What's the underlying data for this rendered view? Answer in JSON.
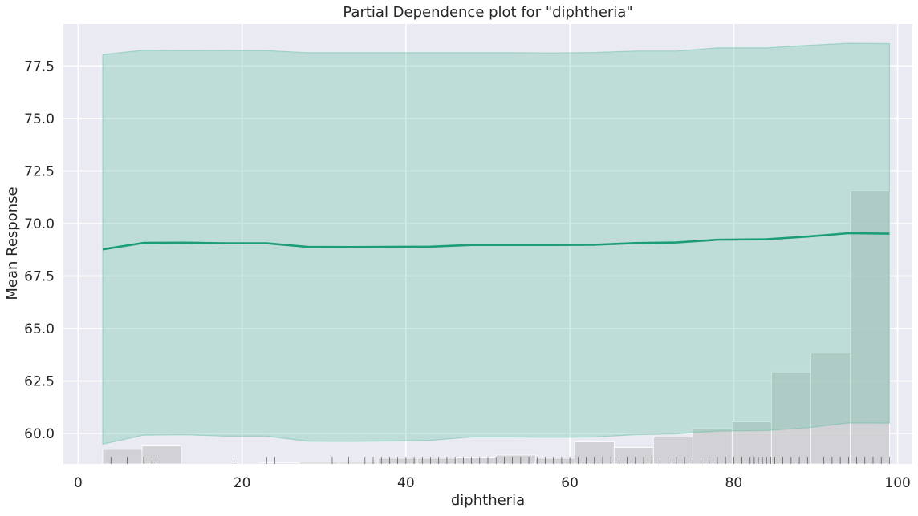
{
  "chart_data": {
    "type": "line",
    "title": "Partial Dependence plot for \"diphtheria\"",
    "xlabel": "diphtheria",
    "ylabel": "Mean Response",
    "xlim": [
      -1.8,
      101.8
    ],
    "ylim": [
      58.55,
      79.5
    ],
    "x_ticks": [
      0,
      20,
      40,
      60,
      80,
      100
    ],
    "y_ticks": [
      60.0,
      62.5,
      65.0,
      67.5,
      70.0,
      72.5,
      75.0,
      77.5
    ],
    "x_tick_labels": [
      "0",
      "20",
      "40",
      "60",
      "80",
      "100"
    ],
    "y_tick_labels": [
      "60.0",
      "62.5",
      "65.0",
      "67.5",
      "70.0",
      "72.5",
      "75.0",
      "77.5"
    ],
    "grid": true,
    "colors": {
      "line": "#1b9e77",
      "band": "#66c2a5",
      "histogram": "#c8c8cc",
      "background": "#eaeaf2",
      "grid": "#ffffff",
      "rug": "#000000"
    },
    "series": [
      {
        "x": [
          3,
          8,
          13,
          18,
          23,
          28,
          33,
          38,
          43,
          48,
          53,
          58,
          63,
          68,
          73,
          78,
          84,
          89,
          94,
          99
        ],
        "values": [
          68.77,
          69.08,
          69.09,
          69.06,
          69.06,
          68.89,
          68.88,
          68.89,
          68.9,
          68.98,
          68.98,
          68.98,
          68.99,
          69.07,
          69.1,
          69.23,
          69.25,
          69.38,
          69.54,
          69.52
        ]
      }
    ],
    "interval": {
      "x": [
        3,
        8,
        13,
        18,
        23,
        28,
        33,
        38,
        43,
        48,
        53,
        58,
        63,
        68,
        73,
        78,
        84,
        89,
        94,
        99
      ],
      "upper": [
        78.04,
        78.25,
        78.23,
        78.24,
        78.23,
        78.13,
        78.13,
        78.13,
        78.13,
        78.13,
        78.13,
        78.12,
        78.14,
        78.21,
        78.21,
        78.36,
        78.36,
        78.48,
        78.58,
        78.56
      ],
      "lower": [
        59.49,
        59.92,
        59.94,
        59.87,
        59.87,
        59.63,
        59.62,
        59.64,
        59.67,
        59.83,
        59.83,
        59.82,
        59.83,
        59.94,
        59.98,
        60.11,
        60.14,
        60.27,
        60.5,
        60.49
      ]
    },
    "histogram": {
      "edges": [
        3,
        7.8,
        12.6,
        17.4,
        22.2,
        27,
        31.8,
        36.6,
        41.4,
        46.2,
        51,
        55.8,
        60.6,
        65.4,
        70.2,
        75,
        79.8,
        84.6,
        89.4,
        94.2,
        99
      ],
      "tops": [
        59.24,
        59.4,
        58.55,
        58.55,
        58.6,
        58.63,
        58.63,
        58.82,
        58.82,
        58.87,
        58.97,
        58.82,
        59.6,
        59.33,
        59.83,
        60.23,
        60.55,
        62.93,
        63.84,
        71.55
      ]
    },
    "rug": [
      4,
      6,
      8,
      9,
      10,
      19,
      23,
      24,
      31,
      33,
      35,
      36,
      37,
      38,
      39,
      40,
      41,
      42,
      43,
      44,
      45,
      46,
      47,
      48,
      49,
      50,
      51,
      52,
      53,
      54,
      55,
      56,
      57,
      58,
      59,
      60,
      61,
      62,
      63,
      64,
      65,
      66,
      67,
      68,
      69,
      70,
      71,
      72,
      73,
      74,
      75,
      76,
      77,
      78,
      79,
      80,
      81,
      82,
      82.5,
      83,
      83.5,
      84,
      84.5,
      85,
      86,
      87,
      88,
      89,
      91,
      92,
      93,
      94,
      95,
      96,
      97,
      98,
      99
    ]
  }
}
